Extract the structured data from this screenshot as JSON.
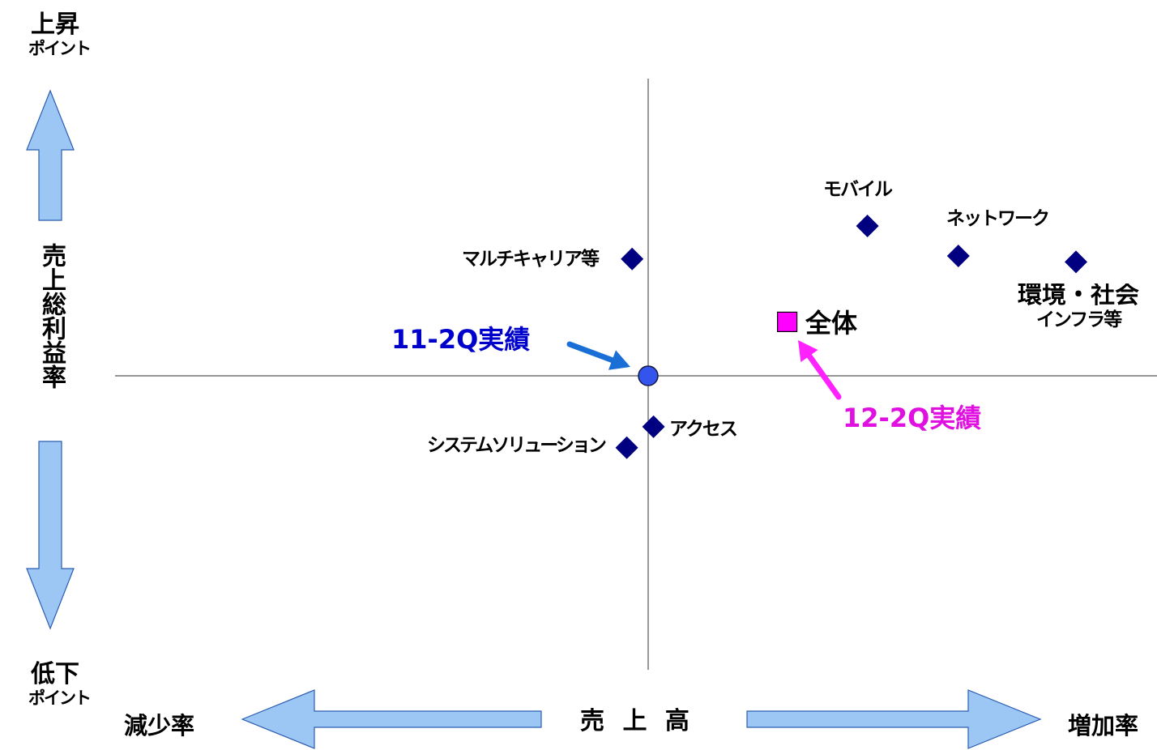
{
  "y_axis": {
    "title": "売上総利益率",
    "top_label": {
      "line1": "上昇",
      "line2": "ポイント"
    },
    "bottom_label": {
      "line1": "低下",
      "line2": "ポイント"
    }
  },
  "x_axis": {
    "title": "売 上 高",
    "left_label": "減少率",
    "right_label": "増加率"
  },
  "annotations": {
    "baseline": "11-2Q実績",
    "current": "12-2Q実績"
  },
  "colors": {
    "segment": "#000080",
    "total": "#ff00ff",
    "baseline_marker": "#3355ee",
    "baseline_text": "#0000cc",
    "baseline_arrow": "#1a6fd6",
    "current_text": "#e010e0",
    "current_arrow": "#ff22ff",
    "axis_arrow_fill": "#9cc7f5",
    "axis_arrow_stroke": "#2a5db0",
    "crosshair": "#555555"
  },
  "chart_data": {
    "type": "scatter",
    "title": "",
    "xlabel": "売 上 高",
    "ylabel": "売上総利益率",
    "xlim": [
      -100,
      100
    ],
    "ylim": [
      -100,
      100
    ],
    "grid": false,
    "origin": {
      "label": "11-2Q実績",
      "x": 0,
      "y": 0
    },
    "series": [
      {
        "name": "",
        "marker": "diamond",
        "points": [
          {
            "label": "マルチキャリア等",
            "x": -3,
            "y": 39
          },
          {
            "label": "モバイル",
            "x": 41,
            "y": 50
          },
          {
            "label": "ネットワーク",
            "x": 58,
            "y": 40
          },
          {
            "label": "環境・社会インフラ等",
            "x": 80,
            "y": 38
          },
          {
            "label": "アクセス",
            "x": 1,
            "y": -17
          },
          {
            "label": "システムソリューション",
            "x": -4,
            "y": -24
          }
        ]
      },
      {
        "name": "",
        "marker": "square",
        "points": [
          {
            "label": "全体",
            "x": 26,
            "y": 18
          }
        ]
      }
    ]
  }
}
